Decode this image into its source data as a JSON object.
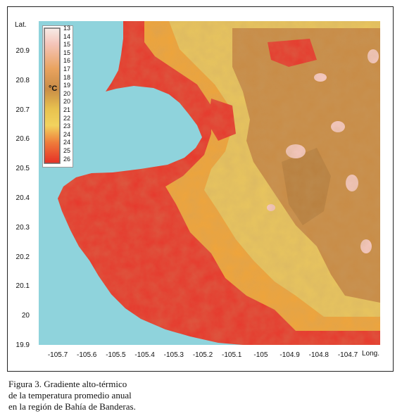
{
  "figure": {
    "axis": {
      "lat_title": "Lat.",
      "long_title": "Long.",
      "lat_ticks": [
        "20.9",
        "20.8",
        "20.7",
        "20.6",
        "20.5",
        "20.4",
        "20.3",
        "20.2",
        "20.1",
        "20",
        "19.9"
      ],
      "lon_ticks": [
        "-105.7",
        "-105.6",
        "-105.5",
        "-105.4",
        "-105.3",
        "-105.2",
        "-105.1",
        "-105",
        "-104.9",
        "-104.8",
        "-104.7"
      ]
    },
    "legend": {
      "unit": "°C",
      "labels": [
        "13",
        "14",
        "15",
        "15",
        "16",
        "17",
        "18",
        "19",
        "20",
        "20",
        "21",
        "22",
        "23",
        "24",
        "24",
        "25",
        "26"
      ]
    },
    "colors": {
      "sea": "#8fd3dc",
      "hot": "#e8372c",
      "warm": "#f0a53a",
      "mild": "#e9c65e",
      "cool": "#c98c46",
      "cold": "#f5c8c0"
    },
    "caption": [
      "Figura 3. Gradiente alto-térmico",
      "de la temperatura promedio anual",
      "en la región de Bahía de Banderas."
    ]
  }
}
